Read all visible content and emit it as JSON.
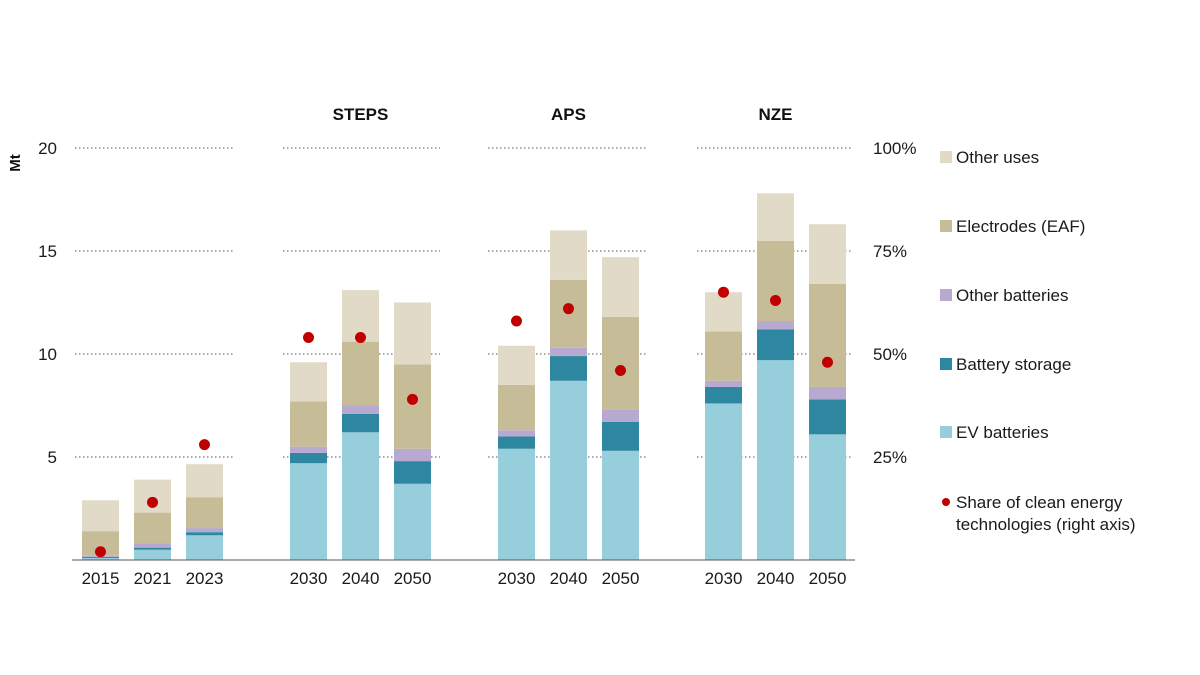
{
  "chart_data": {
    "type": "bar",
    "stacked": true,
    "y_unit": "Mt",
    "ylim": [
      0,
      20
    ],
    "y_ticks": [
      "5",
      "10",
      "15",
      "20"
    ],
    "y2_ticks": [
      "25%",
      "50%",
      "75%",
      "100%"
    ],
    "y2lim": [
      0,
      1
    ],
    "groups": [
      {
        "label": "",
        "bars": [
          {
            "category": "2015",
            "values": [
              0.1,
              0.05,
              0.05,
              1.2,
              1.5
            ],
            "share": 0.02
          },
          {
            "category": "2021",
            "values": [
              0.5,
              0.1,
              0.2,
              1.5,
              1.6
            ],
            "share": 0.14
          },
          {
            "category": "2023",
            "values": [
              1.2,
              0.15,
              0.2,
              1.5,
              1.6
            ],
            "share": 0.28
          }
        ]
      },
      {
        "label": "STEPS",
        "bars": [
          {
            "category": "2030",
            "values": [
              4.7,
              0.5,
              0.3,
              2.2,
              1.9
            ],
            "share": 0.54
          },
          {
            "category": "2040",
            "values": [
              6.2,
              0.9,
              0.4,
              3.1,
              2.5
            ],
            "share": 0.54
          },
          {
            "category": "2050",
            "values": [
              3.7,
              1.1,
              0.6,
              4.1,
              3.0
            ],
            "share": 0.39
          }
        ]
      },
      {
        "label": "APS",
        "bars": [
          {
            "category": "2030",
            "values": [
              5.4,
              0.6,
              0.3,
              2.2,
              1.9
            ],
            "share": 0.58
          },
          {
            "category": "2040",
            "values": [
              8.7,
              1.2,
              0.4,
              3.3,
              2.4
            ],
            "share": 0.61
          },
          {
            "category": "2050",
            "values": [
              5.3,
              1.4,
              0.6,
              4.5,
              2.9
            ],
            "share": 0.46
          }
        ]
      },
      {
        "label": "NZE",
        "bars": [
          {
            "category": "2030",
            "values": [
              7.6,
              0.8,
              0.3,
              2.4,
              1.9
            ],
            "share": 0.65
          },
          {
            "category": "2040",
            "values": [
              9.7,
              1.5,
              0.4,
              3.9,
              2.3
            ],
            "share": 0.63
          },
          {
            "category": "2050",
            "values": [
              6.1,
              1.7,
              0.6,
              5.0,
              2.9
            ],
            "share": 0.48
          }
        ]
      }
    ],
    "series": [
      {
        "name": "EV batteries",
        "color": "#96cedc"
      },
      {
        "name": "Battery storage",
        "color": "#2e87a0"
      },
      {
        "name": "Other batteries",
        "color": "#b8a9d0"
      },
      {
        "name": "Electrodes (EAF)",
        "color": "#c6bd98"
      },
      {
        "name": "Other uses",
        "color": "#e0dac7"
      }
    ],
    "share_series": {
      "name_line1": "Share of clean energy",
      "name_line2": "technologies (right axis)",
      "color": "#c00000"
    }
  }
}
